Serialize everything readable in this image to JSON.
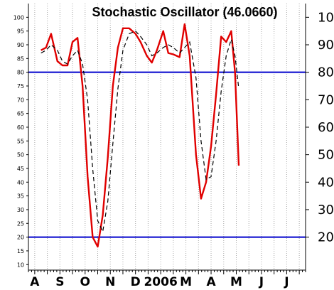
{
  "chart_data": {
    "type": "line",
    "title": "Stochastic Oscillator (46.0660)",
    "xlabel": "",
    "ylabel": "",
    "ylim": [
      8,
      105
    ],
    "grid": "vertical dotted",
    "legend": "none",
    "y_ticks_left": [
      10,
      15,
      20,
      25,
      30,
      35,
      40,
      45,
      50,
      55,
      60,
      65,
      70,
      75,
      80,
      85,
      90,
      95,
      100
    ],
    "y_ticks_right": [
      20,
      30,
      40,
      50,
      60,
      70,
      80,
      90,
      100
    ],
    "x_tick_labels": [
      {
        "label": "A",
        "x": -1
      },
      {
        "label": "S",
        "x": 1
      },
      {
        "label": "O",
        "x": 3
      },
      {
        "label": "N",
        "x": 5
      },
      {
        "label": "D",
        "x": 7
      },
      {
        "label": "2006",
        "x": 9
      },
      {
        "label": "M",
        "x": 11
      },
      {
        "label": "A",
        "x": 13
      },
      {
        "label": "M",
        "x": 15
      },
      {
        "label": "J",
        "x": 17
      },
      {
        "label": "J",
        "x": 19
      }
    ],
    "x_range": [
      -1.5,
      20.5
    ],
    "reference_lines": [
      80,
      20
    ],
    "series": [
      {
        "line_style": "solid",
        "color": "#e00000",
        "points": [
          [
            -0.5,
            88
          ],
          [
            -0.1,
            89
          ],
          [
            0.3,
            94
          ],
          [
            0.8,
            84
          ],
          [
            1.2,
            82.5
          ],
          [
            1.6,
            82.5
          ],
          [
            2.0,
            91
          ],
          [
            2.4,
            92.5
          ],
          [
            2.8,
            75
          ],
          [
            3.2,
            42
          ],
          [
            3.6,
            20
          ],
          [
            4.0,
            16.5
          ],
          [
            4.4,
            28
          ],
          [
            4.8,
            49
          ],
          [
            5.2,
            75
          ],
          [
            5.6,
            89
          ],
          [
            6.0,
            96
          ],
          [
            6.5,
            96
          ],
          [
            7.0,
            94
          ],
          [
            7.4,
            91
          ],
          [
            7.9,
            86
          ],
          [
            8.3,
            83.5
          ],
          [
            8.7,
            88
          ],
          [
            9.2,
            95
          ],
          [
            9.6,
            87
          ],
          [
            10.0,
            86.5
          ],
          [
            10.5,
            85.5
          ],
          [
            10.9,
            97.5
          ],
          [
            11.3,
            86
          ],
          [
            11.8,
            50
          ],
          [
            12.2,
            34
          ],
          [
            12.6,
            40
          ],
          [
            13.0,
            53
          ],
          [
            13.4,
            72
          ],
          [
            13.8,
            93
          ],
          [
            14.2,
            91
          ],
          [
            14.6,
            95
          ],
          [
            14.9,
            80
          ],
          [
            15.2,
            46
          ]
        ]
      },
      {
        "line_style": "dashed",
        "color": "#000000",
        "points": [
          [
            -0.5,
            87
          ],
          [
            -0.1,
            88
          ],
          [
            0.3,
            90
          ],
          [
            0.8,
            88
          ],
          [
            1.2,
            84
          ],
          [
            1.6,
            83
          ],
          [
            2.0,
            86
          ],
          [
            2.4,
            88
          ],
          [
            2.8,
            83
          ],
          [
            3.2,
            70
          ],
          [
            3.6,
            45
          ],
          [
            4.0,
            26
          ],
          [
            4.4,
            22
          ],
          [
            4.8,
            33
          ],
          [
            5.2,
            54
          ],
          [
            5.6,
            74
          ],
          [
            6.0,
            88
          ],
          [
            6.5,
            94
          ],
          [
            7.0,
            95
          ],
          [
            7.4,
            93
          ],
          [
            7.9,
            90
          ],
          [
            8.3,
            86
          ],
          [
            8.7,
            87
          ],
          [
            9.2,
            89
          ],
          [
            9.6,
            90
          ],
          [
            10.0,
            89
          ],
          [
            10.5,
            87
          ],
          [
            10.9,
            89
          ],
          [
            11.3,
            91
          ],
          [
            11.8,
            78
          ],
          [
            12.2,
            55
          ],
          [
            12.6,
            41
          ],
          [
            13.0,
            42
          ],
          [
            13.4,
            55
          ],
          [
            13.8,
            73
          ],
          [
            14.2,
            86
          ],
          [
            14.6,
            92
          ],
          [
            14.9,
            86
          ],
          [
            15.2,
            74
          ]
        ]
      }
    ]
  }
}
